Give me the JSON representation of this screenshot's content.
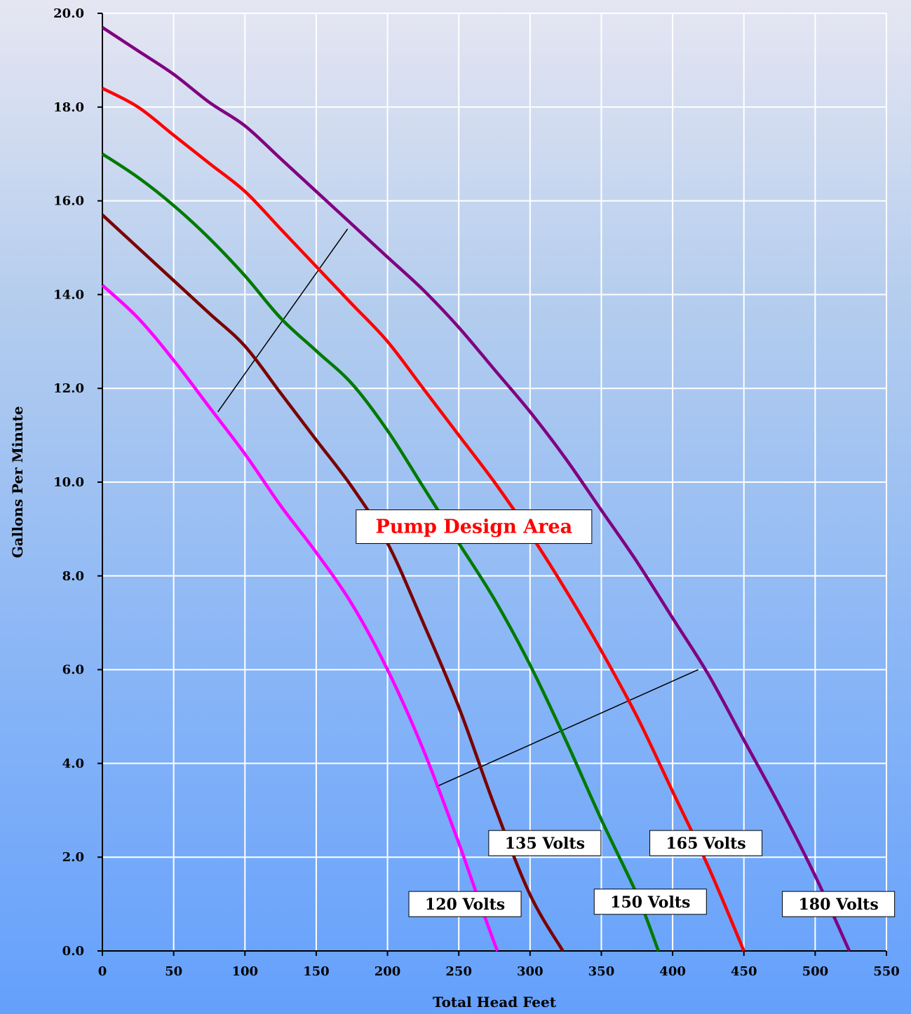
{
  "chart_data": {
    "type": "line",
    "title": "",
    "xlabel": "Total Head Feet",
    "ylabel": "Gallons Per Minute",
    "xlim": [
      0,
      550
    ],
    "ylim": [
      0,
      20
    ],
    "x_ticks": [
      "0",
      "50",
      "100",
      "150",
      "200",
      "250",
      "300",
      "350",
      "400",
      "450",
      "500",
      "550"
    ],
    "y_ticks": [
      "0.0",
      "2.0",
      "4.0",
      "6.0",
      "8.0",
      "10.0",
      "12.0",
      "14.0",
      "16.0",
      "18.0",
      "20.0"
    ],
    "grid": true,
    "series": [
      {
        "name": "120 Volts",
        "color": "#ff00ff",
        "points": [
          [
            0,
            14.2
          ],
          [
            25,
            13.5
          ],
          [
            50,
            12.6
          ],
          [
            75,
            11.6
          ],
          [
            100,
            10.6
          ],
          [
            125,
            9.5
          ],
          [
            150,
            8.5
          ],
          [
            175,
            7.4
          ],
          [
            200,
            6.0
          ],
          [
            225,
            4.3
          ],
          [
            250,
            2.3
          ],
          [
            265,
            1.0
          ],
          [
            277,
            0.0
          ]
        ]
      },
      {
        "name": "135 Volts",
        "color": "#7a0000",
        "points": [
          [
            0,
            15.7
          ],
          [
            25,
            15.0
          ],
          [
            50,
            14.3
          ],
          [
            75,
            13.6
          ],
          [
            100,
            12.9
          ],
          [
            125,
            11.9
          ],
          [
            150,
            10.9
          ],
          [
            175,
            9.9
          ],
          [
            200,
            8.7
          ],
          [
            225,
            7.0
          ],
          [
            250,
            5.2
          ],
          [
            275,
            3.1
          ],
          [
            300,
            1.2
          ],
          [
            323,
            0.0
          ]
        ]
      },
      {
        "name": "150 Volts",
        "color": "#007a00",
        "points": [
          [
            0,
            17.0
          ],
          [
            25,
            16.5
          ],
          [
            50,
            15.9
          ],
          [
            75,
            15.2
          ],
          [
            100,
            14.4
          ],
          [
            125,
            13.5
          ],
          [
            150,
            12.8
          ],
          [
            175,
            12.1
          ],
          [
            200,
            11.1
          ],
          [
            225,
            9.9
          ],
          [
            250,
            8.7
          ],
          [
            275,
            7.5
          ],
          [
            300,
            6.1
          ],
          [
            325,
            4.5
          ],
          [
            350,
            2.8
          ],
          [
            375,
            1.2
          ],
          [
            390,
            0.0
          ]
        ]
      },
      {
        "name": "165 Volts",
        "color": "#ff0000",
        "points": [
          [
            0,
            18.4
          ],
          [
            25,
            18.0
          ],
          [
            50,
            17.4
          ],
          [
            75,
            16.8
          ],
          [
            100,
            16.2
          ],
          [
            125,
            15.4
          ],
          [
            150,
            14.6
          ],
          [
            175,
            13.8
          ],
          [
            200,
            13.0
          ],
          [
            225,
            12.0
          ],
          [
            250,
            11.0
          ],
          [
            275,
            10.0
          ],
          [
            300,
            8.9
          ],
          [
            325,
            7.7
          ],
          [
            350,
            6.4
          ],
          [
            375,
            5.0
          ],
          [
            400,
            3.4
          ],
          [
            425,
            1.8
          ],
          [
            450,
            0.0
          ]
        ]
      },
      {
        "name": "180 Volts",
        "color": "#800080",
        "points": [
          [
            0,
            19.7
          ],
          [
            25,
            19.2
          ],
          [
            50,
            18.7
          ],
          [
            75,
            18.1
          ],
          [
            100,
            17.6
          ],
          [
            125,
            16.9
          ],
          [
            150,
            16.2
          ],
          [
            175,
            15.5
          ],
          [
            200,
            14.8
          ],
          [
            225,
            14.1
          ],
          [
            250,
            13.3
          ],
          [
            275,
            12.4
          ],
          [
            300,
            11.5
          ],
          [
            325,
            10.5
          ],
          [
            350,
            9.4
          ],
          [
            375,
            8.3
          ],
          [
            400,
            7.1
          ],
          [
            425,
            5.9
          ],
          [
            450,
            4.5
          ],
          [
            475,
            3.1
          ],
          [
            500,
            1.6
          ],
          [
            524,
            0.0
          ]
        ]
      }
    ],
    "bound_lines": [
      {
        "from": [
          81,
          11.5
        ],
        "to": [
          172,
          15.4
        ]
      },
      {
        "from": [
          234,
          3.5
        ],
        "to": [
          418,
          6.0
        ]
      }
    ],
    "annotations": {
      "design_area": {
        "text": "Pump Design Area",
        "color": "#ff0000"
      }
    }
  }
}
